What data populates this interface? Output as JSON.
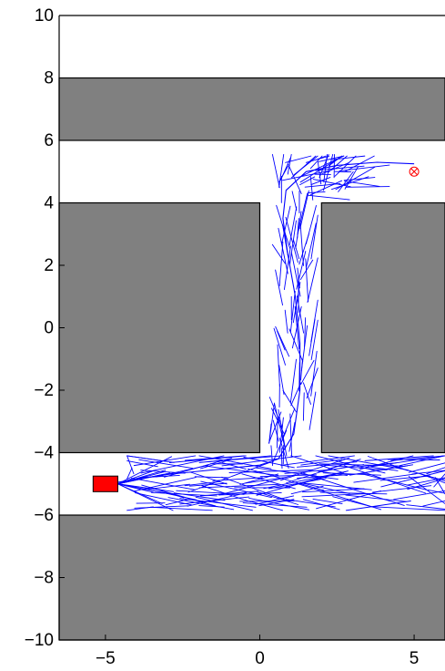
{
  "chart_data": {
    "type": "line",
    "title": "",
    "xlabel": "",
    "ylabel": "",
    "xlim": [
      -6.5,
      6
    ],
    "ylim": [
      -10,
      10
    ],
    "x_ticks": [
      -5,
      0,
      5
    ],
    "x_tick_labels": [
      "−5",
      "0",
      "5"
    ],
    "y_ticks": [
      -10,
      -8,
      -6,
      -4,
      -2,
      0,
      2,
      4,
      6,
      8,
      10
    ],
    "y_tick_labels": [
      "−10",
      "−8",
      "−6",
      "−4",
      "−2",
      "0",
      "2",
      "4",
      "6",
      "8",
      "10"
    ],
    "grid": false,
    "legend": "none",
    "colors": {
      "obstacle": "#808080",
      "free_space": "#ffffff",
      "tree": "#0000ff",
      "start": "#ff0000",
      "goal": "#ff0000",
      "axes": "#000000"
    },
    "obstacles": [
      {
        "name": "top-wall",
        "x": [
          -6.5,
          6
        ],
        "y": [
          6,
          8
        ]
      },
      {
        "name": "left-block",
        "x": [
          -6.5,
          0
        ],
        "y": [
          -4,
          4
        ]
      },
      {
        "name": "right-block",
        "x": [
          2,
          6
        ],
        "y": [
          -4,
          4
        ]
      },
      {
        "name": "bottom-wall",
        "x": [
          -6.5,
          6
        ],
        "y": [
          -10,
          -6
        ]
      }
    ],
    "start": {
      "x": -5,
      "y": -5,
      "width": 0.8,
      "height": 0.5
    },
    "goal": {
      "x": 5,
      "y": 5
    },
    "path_waypoints": [
      [
        -4.9,
        -5.0
      ],
      [
        -4.0,
        -4.85
      ],
      [
        -3.0,
        -4.7
      ],
      [
        -2.0,
        -4.6
      ],
      [
        -1.0,
        -4.5
      ],
      [
        0.0,
        -4.4
      ],
      [
        0.6,
        -4.2
      ],
      [
        1.1,
        -3.4
      ],
      [
        1.3,
        -2.0
      ],
      [
        1.3,
        -0.5
      ],
      [
        1.15,
        1.0
      ],
      [
        0.9,
        2.4
      ],
      [
        0.75,
        3.5
      ],
      [
        0.85,
        4.4
      ],
      [
        1.5,
        5.0
      ],
      [
        2.5,
        5.2
      ],
      [
        3.8,
        5.3
      ],
      [
        5.0,
        5.25
      ]
    ],
    "corridor_extension_end": [
      6.0,
      -4.8
    ]
  }
}
